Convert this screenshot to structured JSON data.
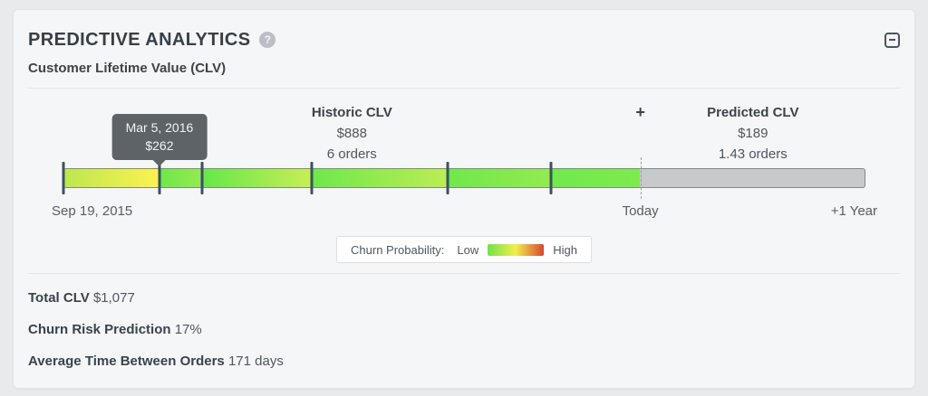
{
  "panel": {
    "title": "PREDICTIVE ANALYTICS",
    "subtitle": "Customer Lifetime Value (CLV)",
    "help_icon": "question-mark",
    "collapse_icon": "minus"
  },
  "chart_data": {
    "type": "timeline-gradient-bar",
    "title": "Customer Lifetime Value (CLV)",
    "historic": {
      "label": "Historic CLV",
      "value": "$888",
      "orders": "6 orders"
    },
    "plus": "+",
    "predicted": {
      "label": "Predicted CLV",
      "value": "$189",
      "orders": "1.43 orders"
    },
    "tooltip": {
      "date": "Mar 5, 2016",
      "value": "$262",
      "pct": 11.97
    },
    "axis": {
      "start": "Sep 19, 2015",
      "today": "Today",
      "end": "+1 Year"
    },
    "today_pct": 71.93,
    "order_ticks_pct": [
      0,
      11.97,
      17.3,
      31.0,
      47.9,
      60.8
    ],
    "segments": [
      {
        "from_pct": 0,
        "to_pct": 11.97,
        "color_from": "#bce74f",
        "color_to": "#fef24e"
      },
      {
        "from_pct": 11.97,
        "to_pct": 17.3,
        "color_from": "#6fe74b",
        "color_to": "#97ea4f"
      },
      {
        "from_pct": 17.3,
        "to_pct": 31.0,
        "color_from": "#66e74a",
        "color_to": "#c9ee55"
      },
      {
        "from_pct": 31.0,
        "to_pct": 47.9,
        "color_from": "#6ee84c",
        "color_to": "#bcec53"
      },
      {
        "from_pct": 47.9,
        "to_pct": 60.8,
        "color_from": "#6fe84c",
        "color_to": "#93ea50"
      },
      {
        "from_pct": 60.8,
        "to_pct": 71.93,
        "color_from": "#71e94d",
        "color_to": "#7eea4e"
      }
    ],
    "future_color": "#c6cacd",
    "colors": {
      "tick": "#3b5066",
      "tooltip_bg": "#5d6367"
    },
    "legend": {
      "label": "Churn Probability:",
      "low": "Low",
      "high": "High",
      "swatch": [
        "#70e24b",
        "#f2ee4e",
        "#d8472f"
      ],
      "position": "bottom-center"
    }
  },
  "stats": [
    {
      "label": "Total CLV",
      "value": "$1,077"
    },
    {
      "label": "Churn Risk Prediction",
      "value": "17%"
    },
    {
      "label": "Average Time Between Orders",
      "value": "171 days"
    }
  ]
}
